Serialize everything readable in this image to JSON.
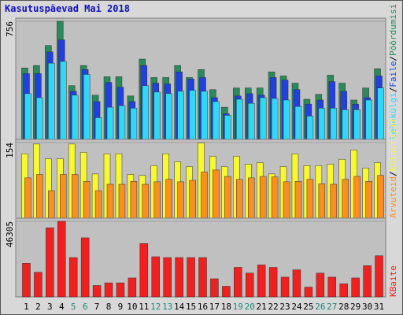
{
  "title": "Kasutuspäevad Mai 2018",
  "legend_separator": "/",
  "chart_data": [
    {
      "type": "bar",
      "ylim": [
        0,
        756
      ],
      "yticks": [
        756
      ],
      "series": [
        {
          "name": "Pöördumisi",
          "color": "#2a8a5c",
          "values": [
            457,
            473,
            601,
            756,
            344,
            473,
            283,
            401,
            401,
            278,
            514,
            396,
            396,
            473,
            396,
            447,
            319,
            206,
            329,
            329,
            329,
            432,
            406,
            360,
            257,
            288,
            411,
            360,
            252,
            329,
            452
          ]
        },
        {
          "name": "Faile",
          "color": "#2040e0",
          "values": [
            421,
            421,
            560,
            637,
            308,
            447,
            242,
            365,
            334,
            242,
            473,
            360,
            355,
            432,
            386,
            396,
            267,
            164,
            278,
            293,
            283,
            396,
            380,
            319,
            226,
            252,
            370,
            308,
            226,
            267,
            406
          ]
        },
        {
          "name": "Lehekülgi",
          "color": "#30d8f8",
          "values": [
            293,
            267,
            488,
            499,
            283,
            416,
            139,
            206,
            216,
            200,
            344,
            303,
            293,
            308,
            314,
            308,
            242,
            154,
            257,
            231,
            267,
            262,
            252,
            211,
            149,
            200,
            200,
            190,
            190,
            252,
            329
          ]
        }
      ]
    },
    {
      "type": "bar",
      "ylim": [
        0,
        154
      ],
      "yticks": [
        154
      ],
      "series": [
        {
          "name": "Külastajad",
          "color": "#f8f830",
          "values": [
            131,
            151,
            121,
            121,
            151,
            134,
            90,
            131,
            131,
            89,
            87,
            107,
            131,
            115,
            105,
            153,
            126,
            105,
            126,
            110,
            113,
            90,
            105,
            131,
            107,
            107,
            110,
            120,
            139,
            102,
            113
          ]
        },
        {
          "name": "Arvuteid",
          "color": "#f89020",
          "values": [
            82,
            89,
            56,
            89,
            89,
            75,
            56,
            69,
            69,
            75,
            69,
            74,
            79,
            74,
            77,
            94,
            98,
            85,
            79,
            82,
            85,
            84,
            74,
            75,
            79,
            70,
            69,
            79,
            85,
            75,
            87
          ]
        }
      ]
    },
    {
      "type": "bar",
      "ylim": [
        0,
        46305
      ],
      "yticks": [
        46305
      ],
      "categories": [
        "1",
        "2",
        "3",
        "4",
        "5",
        "6",
        "7",
        "8",
        "9",
        "10",
        "11",
        "12",
        "13",
        "14",
        "15",
        "16",
        "17",
        "18",
        "19",
        "20",
        "21",
        "22",
        "23",
        "24",
        "25",
        "26",
        "27",
        "28",
        "29",
        "30",
        "31"
      ],
      "category_colors": [
        "#000000",
        "#000000",
        "#000000",
        "#000000",
        "#1a8a7a",
        "#1a8a7a",
        "#000000",
        "#000000",
        "#000000",
        "#000000",
        "#000000",
        "#1a8a7a",
        "#1a8a7a",
        "#000000",
        "#000000",
        "#000000",
        "#000000",
        "#000000",
        "#1a8a7a",
        "#1a8a7a",
        "#000000",
        "#000000",
        "#000000",
        "#000000",
        "#000000",
        "#1a8a7a",
        "#1a8a7a",
        "#000000",
        "#000000",
        "#000000",
        "#000000"
      ],
      "series": [
        {
          "name": "KBaite",
          "color": "#ee2020",
          "values": [
            20600,
            15100,
            42300,
            46305,
            24100,
            36200,
            7000,
            8600,
            8600,
            11600,
            32700,
            24600,
            24100,
            24100,
            24100,
            24100,
            11100,
            6500,
            18100,
            14600,
            19600,
            18100,
            12100,
            16600,
            6000,
            14600,
            12100,
            8000,
            11600,
            19100,
            25200
          ]
        }
      ]
    }
  ]
}
